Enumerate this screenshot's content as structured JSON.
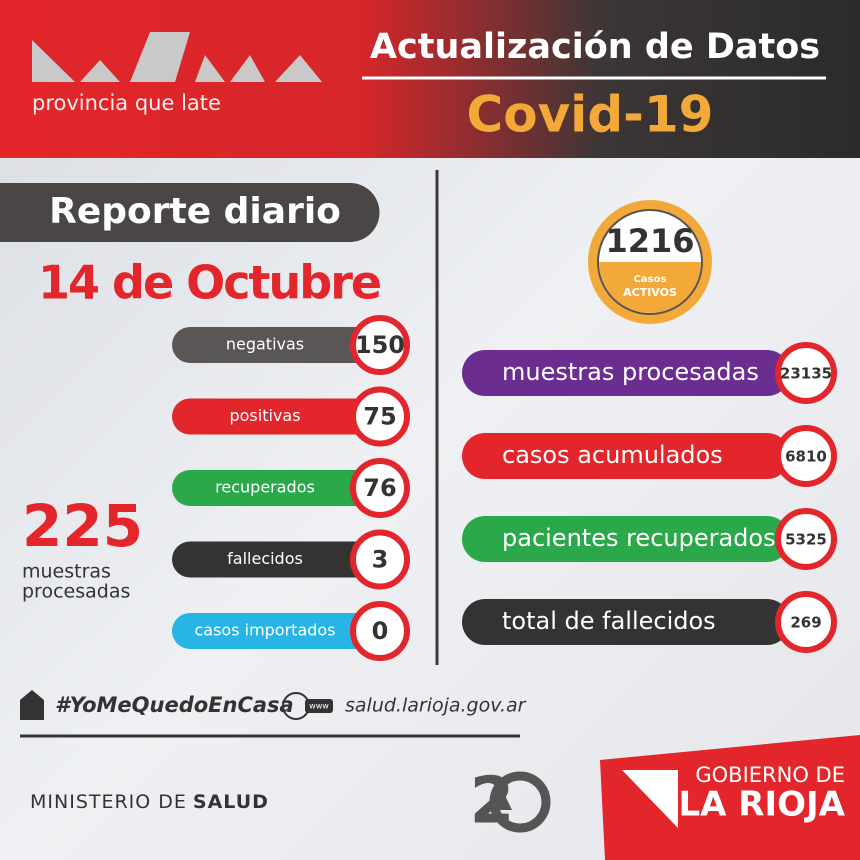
{
  "header": {
    "logo_tagline": "provincia que late",
    "title": "Actualización de Datos",
    "subtitle": "Covid-19"
  },
  "report": {
    "label": "Reporte diario",
    "date": "14 de Octubre",
    "items": [
      {
        "label": "negativas",
        "value": 150,
        "color": "#5a5656"
      },
      {
        "label": "positivas",
        "value": 75,
        "color": "#e3262b"
      },
      {
        "label": "recuperados",
        "value": 76,
        "color": "#2aa84a"
      },
      {
        "label": "fallecidos",
        "value": 3,
        "color": "#333333"
      },
      {
        "label": "casos importados",
        "value": 0,
        "color": "#27b5e6"
      }
    ],
    "total": {
      "value": 225,
      "label_line1": "muestras",
      "label_line2": "procesadas"
    }
  },
  "active": {
    "value": 1216,
    "label_line1": "Casos",
    "label_line2": "ACTIVOS"
  },
  "cumulative": {
    "items": [
      {
        "label": "muestras procesadas",
        "value": 23135,
        "color": "#6b2d8f"
      },
      {
        "label": "casos acumulados",
        "value": 6810,
        "color": "#e3262b"
      },
      {
        "label": "pacientes recuperados",
        "value": 5325,
        "color": "#2aa84a"
      },
      {
        "label": "total de fallecidos",
        "value": 269,
        "color": "#333333"
      }
    ]
  },
  "footer": {
    "hashtag": "#YoMeQuedoEnCasa",
    "website_badge": "www",
    "website": "salud.larioja.gov.ar",
    "ministry_prefix": "MINISTERIO DE",
    "ministry_name": "SALUD",
    "government_prefix": "GOBIERNO DE",
    "government_name": "LA RIOJA"
  }
}
